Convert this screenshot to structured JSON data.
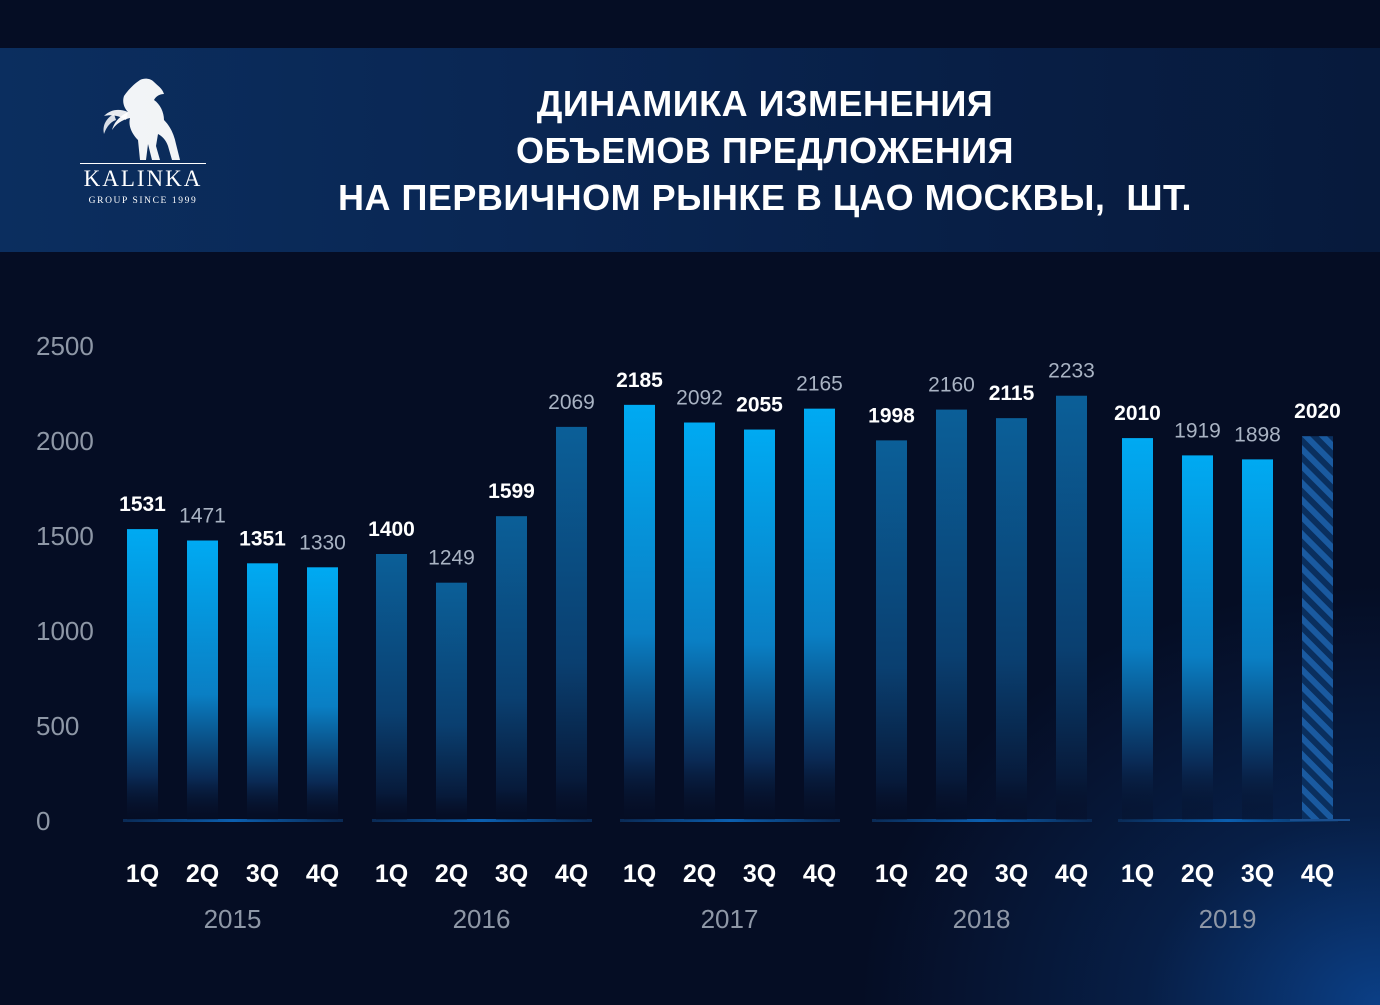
{
  "brand": {
    "name": "KALINKA",
    "tagline": "GROUP SINCE 1999"
  },
  "title_lines": [
    "ДИНАМИКА ИЗМЕНЕНИЯ",
    "ОБЪЕМОВ ПРЕДЛОЖЕНИЯ",
    "НА ПЕРВИЧНОМ РЫНКЕ В ЦАО МОСКВЫ,  ШТ."
  ],
  "colors": {
    "background": "#050d24",
    "bar_bright": "#00a8f0",
    "bar_dark": "#0a5e95",
    "label_white": "#ffffff",
    "label_grey": "#a9b3c3",
    "axis_tick": "#8e97a6"
  },
  "chart_data": {
    "type": "bar",
    "title": "ДИНАМИКА ИЗМЕНЕНИЯ ОБЪЕМОВ ПРЕДЛОЖЕНИЯ НА ПЕРВИЧНОМ РЫНКЕ В ЦАО МОСКВЫ, ШТ.",
    "xlabel": "",
    "ylabel": "",
    "ylim": [
      0,
      2500
    ],
    "yticks": [
      0,
      500,
      1000,
      1500,
      2000,
      2500
    ],
    "grid": false,
    "legend": "none",
    "groups": [
      {
        "year": "2015",
        "quarters": [
          "1Q",
          "2Q",
          "3Q",
          "4Q"
        ],
        "values": [
          1531,
          1471,
          1351,
          1330
        ],
        "styles": [
          "bright",
          "bright",
          "bright",
          "bright"
        ]
      },
      {
        "year": "2016",
        "quarters": [
          "1Q",
          "2Q",
          "3Q",
          "4Q"
        ],
        "values": [
          1400,
          1249,
          1599,
          2069
        ],
        "styles": [
          "dark",
          "dark",
          "dark",
          "dark"
        ]
      },
      {
        "year": "2017",
        "quarters": [
          "1Q",
          "2Q",
          "3Q",
          "4Q"
        ],
        "values": [
          2185,
          2092,
          2055,
          2165
        ],
        "styles": [
          "bright",
          "bright",
          "bright",
          "bright"
        ]
      },
      {
        "year": "2018",
        "quarters": [
          "1Q",
          "2Q",
          "3Q",
          "4Q"
        ],
        "values": [
          1998,
          2160,
          2115,
          2233
        ],
        "styles": [
          "dark",
          "dark",
          "dark",
          "dark"
        ]
      },
      {
        "year": "2019",
        "quarters": [
          "1Q",
          "2Q",
          "3Q",
          "4Q"
        ],
        "values": [
          2010,
          1919,
          1898,
          2020
        ],
        "styles": [
          "bright",
          "bright",
          "bright",
          "hatched"
        ]
      }
    ],
    "label_colors": [
      [
        "white",
        "grey",
        "white",
        "grey"
      ],
      [
        "white",
        "grey",
        "white",
        "grey"
      ],
      [
        "white",
        "grey",
        "white",
        "grey"
      ],
      [
        "white",
        "grey",
        "white",
        "grey"
      ],
      [
        "white",
        "grey",
        "grey",
        "white"
      ]
    ]
  }
}
